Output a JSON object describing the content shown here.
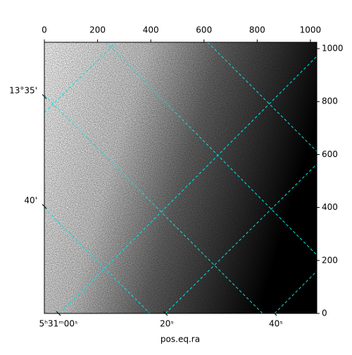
{
  "chart_data": {
    "type": "image",
    "xlabel": "pos.eq.ra",
    "xlim": [
      0,
      1024
    ],
    "ylim": [
      0,
      1024
    ],
    "xticks": [
      0,
      200,
      400,
      600,
      800,
      1000
    ],
    "yticks": [
      0,
      200,
      400,
      600,
      800,
      1000
    ],
    "ra_ticks": [
      {
        "value": 53,
        "label": "5ʰ31ᵐ00ˢ"
      },
      {
        "value": 455,
        "label": "20ˢ"
      },
      {
        "value": 865,
        "label": "40ˢ"
      }
    ],
    "dec_ticks": [
      {
        "value": 819,
        "label": "13°35'"
      },
      {
        "value": 404,
        "label": "40'"
      }
    ],
    "grid_color": "#00e5e5"
  }
}
